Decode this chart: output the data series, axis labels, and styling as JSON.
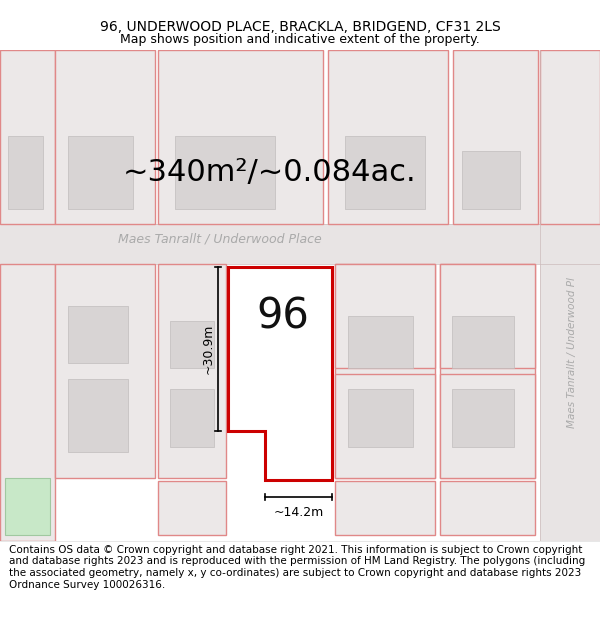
{
  "title_line1": "96, UNDERWOOD PLACE, BRACKLA, BRIDGEND, CF31 2LS",
  "title_line2": "Map shows position and indicative extent of the property.",
  "area_text": "~340m²/~0.084ac.",
  "street_name": "Maes Tanrallt / Underwood Place",
  "street_name_right": "Maes Tanrallt / Underwood Pl",
  "house_number": "96",
  "dim_width": "~14.2m",
  "dim_height": "~30.9m",
  "footer_text": "Contains OS data © Crown copyright and database right 2021. This information is subject to Crown copyright and database rights 2023 and is reproduced with the permission of HM Land Registry. The polygons (including the associated geometry, namely x, y co-ordinates) are subject to Crown copyright and database rights 2023 Ordnance Survey 100026316.",
  "map_bg": "#f2efef",
  "highlight_fill": "#ffffff",
  "highlight_stroke": "#cc0000",
  "plot_stroke": "#e08888",
  "plot_fill": "#ece8e8",
  "building_fill": "#d8d4d4",
  "road_fill": "#e8e4e4",
  "dim_color": "#000000",
  "title_fontsize": 10,
  "subtitle_fontsize": 9,
  "area_fontsize": 22,
  "street_fontsize": 9,
  "number_fontsize": 30,
  "footer_fontsize": 7.5
}
